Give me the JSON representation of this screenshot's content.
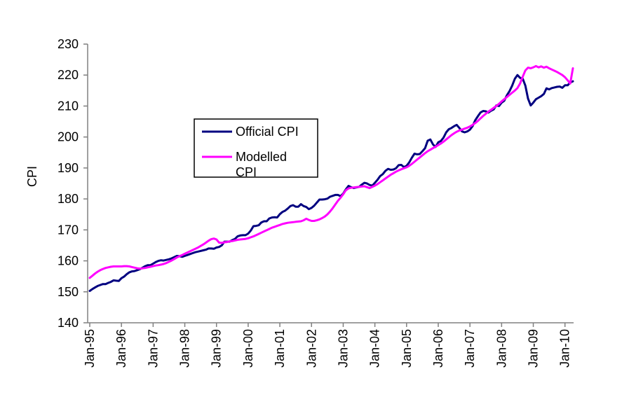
{
  "figure": {
    "background_color": "#ffffff",
    "axis_line_color": "#808080",
    "text_color": "#000000"
  },
  "y_axis": {
    "title": "CPI",
    "min": 140,
    "max": 230,
    "step": 10,
    "tick_labels": [
      "140",
      "150",
      "160",
      "170",
      "180",
      "190",
      "200",
      "210",
      "220",
      "230"
    ]
  },
  "x_axis": {
    "tick_labels": [
      "Jan-95",
      "Jan-96",
      "Jan-97",
      "Jan-98",
      "Jan-99",
      "Jan-00",
      "Jan-01",
      "Jan-02",
      "Jan-03",
      "Jan-04",
      "Jan-05",
      "Jan-06",
      "Jan-07",
      "Jan-08",
      "Jan-09",
      "Jan-10"
    ]
  },
  "legend": {
    "items": [
      {
        "label": "Official CPI",
        "lines": [
          "Official CPI"
        ],
        "color": "#000080"
      },
      {
        "label": "Modelled CPI",
        "lines": [
          "Modelled",
          "CPI"
        ],
        "color": "#FF00FF"
      }
    ]
  },
  "chart_data": {
    "type": "line",
    "title": "",
    "xlabel": "",
    "ylabel": "CPI",
    "ylim": [
      140,
      230
    ],
    "y_tick_step": 10,
    "grid": false,
    "legend_position": "inside-upper-left",
    "x_start": "Jan-1995",
    "x_end": "Apr-2010",
    "frequency": "monthly",
    "x_tick_labels": [
      "Jan-95",
      "Jan-96",
      "Jan-97",
      "Jan-98",
      "Jan-99",
      "Jan-00",
      "Jan-01",
      "Jan-02",
      "Jan-03",
      "Jan-04",
      "Jan-05",
      "Jan-06",
      "Jan-07",
      "Jan-08",
      "Jan-09",
      "Jan-10"
    ],
    "series": [
      {
        "name": "Official CPI",
        "color": "#000080",
        "values": [
          150.3,
          150.9,
          151.4,
          151.9,
          152.2,
          152.5,
          152.5,
          152.9,
          153.2,
          153.7,
          153.6,
          153.5,
          154.4,
          154.9,
          155.7,
          156.3,
          156.6,
          156.7,
          157.0,
          157.3,
          157.8,
          158.3,
          158.6,
          158.6,
          159.1,
          159.6,
          160.0,
          160.2,
          160.1,
          160.3,
          160.5,
          160.8,
          161.2,
          161.6,
          161.5,
          161.3,
          161.6,
          161.9,
          162.2,
          162.5,
          162.8,
          163.0,
          163.2,
          163.4,
          163.6,
          164.0,
          164.0,
          163.9,
          164.3,
          164.5,
          165.0,
          166.2,
          166.2,
          166.2,
          166.7,
          167.1,
          167.9,
          168.2,
          168.3,
          168.3,
          168.8,
          169.8,
          171.2,
          171.3,
          171.5,
          172.4,
          172.8,
          172.8,
          173.7,
          174.0,
          174.1,
          174.0,
          175.1,
          175.8,
          176.2,
          176.9,
          177.7,
          178.0,
          177.5,
          177.5,
          178.3,
          177.7,
          177.4,
          176.7,
          177.1,
          177.8,
          178.8,
          179.8,
          179.8,
          179.9,
          180.1,
          180.7,
          181.0,
          181.3,
          181.3,
          180.9,
          181.7,
          183.1,
          184.2,
          183.8,
          183.5,
          183.7,
          183.9,
          184.6,
          185.2,
          185.0,
          184.5,
          184.3,
          185.2,
          186.2,
          187.4,
          188.0,
          189.1,
          189.7,
          189.4,
          189.5,
          189.9,
          190.9,
          191.0,
          190.3,
          190.7,
          191.8,
          193.3,
          194.6,
          194.4,
          194.5,
          195.4,
          196.4,
          198.8,
          199.2,
          197.6,
          196.8,
          198.3,
          198.7,
          199.8,
          201.5,
          202.5,
          202.9,
          203.5,
          203.9,
          202.9,
          201.8,
          201.5,
          201.8,
          202.4,
          203.5,
          205.4,
          206.7,
          207.9,
          208.4,
          208.3,
          207.9,
          208.5,
          208.9,
          210.2,
          210.0,
          211.1,
          211.7,
          213.5,
          214.8,
          216.6,
          218.8,
          220.0,
          219.1,
          218.8,
          216.6,
          212.4,
          210.2,
          211.1,
          212.2,
          212.7,
          213.2,
          213.9,
          215.7,
          215.4,
          215.8,
          216.0,
          216.2,
          216.3,
          215.9,
          216.7,
          216.7,
          217.6,
          218.0
        ]
      },
      {
        "name": "Modelled CPI",
        "color": "#FF00FF",
        "values": [
          154.5,
          155.2,
          155.9,
          156.5,
          157.0,
          157.4,
          157.7,
          157.9,
          158.1,
          158.2,
          158.2,
          158.2,
          158.2,
          158.3,
          158.3,
          158.2,
          158.0,
          157.8,
          157.6,
          157.5,
          157.6,
          157.7,
          157.9,
          158.1,
          158.3,
          158.5,
          158.6,
          158.8,
          159.0,
          159.3,
          159.7,
          160.1,
          160.6,
          161.1,
          161.5,
          161.9,
          162.3,
          162.7,
          163.1,
          163.5,
          163.9,
          164.3,
          164.8,
          165.3,
          165.9,
          166.5,
          167.0,
          167.2,
          166.9,
          165.9,
          165.8,
          166.0,
          166.1,
          166.3,
          166.4,
          166.6,
          166.8,
          166.9,
          167.0,
          167.1,
          167.3,
          167.6,
          167.9,
          168.3,
          168.7,
          169.1,
          169.5,
          169.9,
          170.3,
          170.7,
          171.0,
          171.3,
          171.6,
          171.9,
          172.1,
          172.3,
          172.4,
          172.5,
          172.6,
          172.7,
          172.8,
          173.1,
          173.6,
          173.2,
          172.9,
          172.9,
          173.1,
          173.4,
          173.8,
          174.3,
          175.0,
          175.9,
          177.0,
          178.2,
          179.4,
          180.4,
          181.5,
          182.8,
          183.4,
          183.6,
          183.7,
          183.8,
          183.9,
          184.0,
          184.1,
          183.8,
          183.5,
          183.9,
          184.3,
          184.8,
          185.4,
          186.0,
          186.6,
          187.2,
          187.8,
          188.3,
          188.8,
          189.2,
          189.6,
          189.9,
          190.2,
          190.7,
          191.3,
          192.0,
          192.7,
          193.4,
          194.1,
          194.8,
          195.4,
          195.9,
          196.4,
          196.9,
          197.4,
          197.9,
          198.5,
          199.2,
          199.9,
          200.6,
          201.2,
          201.7,
          202.1,
          202.4,
          202.7,
          203.0,
          203.4,
          203.9,
          204.5,
          205.2,
          206.0,
          206.8,
          207.5,
          208.2,
          208.8,
          209.4,
          210.0,
          210.7,
          211.5,
          212.2,
          212.9,
          213.6,
          214.3,
          215.0,
          215.8,
          217.3,
          219.5,
          221.5,
          222.4,
          222.2,
          222.5,
          222.9,
          222.5,
          222.8,
          222.4,
          222.7,
          222.2,
          221.8,
          221.4,
          221.0,
          220.5,
          220.0,
          219.3,
          218.3,
          217.3,
          222.2
        ]
      }
    ]
  }
}
